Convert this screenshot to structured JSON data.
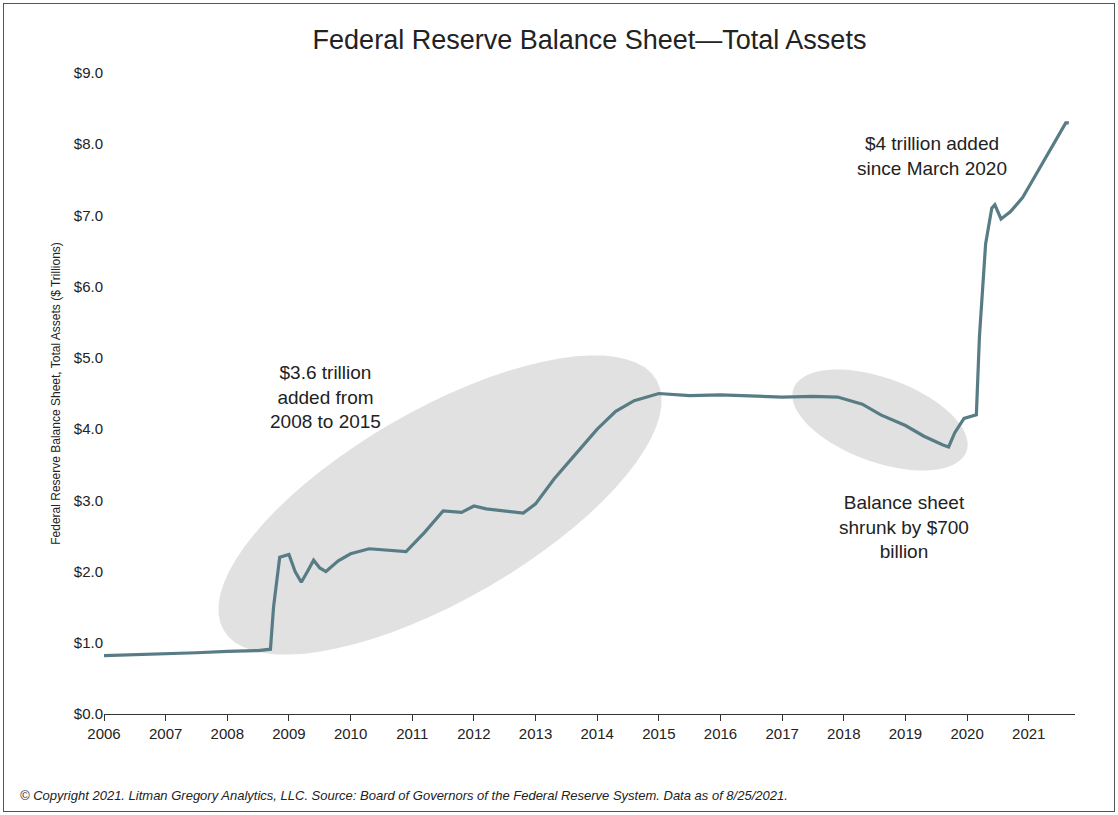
{
  "chart_data": {
    "type": "line",
    "title": "Federal Reserve Balance Sheet—Total Assets",
    "y_label": "Federal Reserve Balance Sheet, Total Assets ($ Trillions)",
    "x": [
      2006.0,
      2006.5,
      2007.0,
      2007.5,
      2008.0,
      2008.5,
      2008.7,
      2008.75,
      2008.85,
      2009.0,
      2009.1,
      2009.2,
      2009.3,
      2009.4,
      2009.5,
      2009.6,
      2009.8,
      2010.0,
      2010.3,
      2010.6,
      2010.9,
      2011.2,
      2011.5,
      2011.8,
      2012.0,
      2012.2,
      2012.5,
      2012.8,
      2013.0,
      2013.3,
      2013.6,
      2014.0,
      2014.3,
      2014.6,
      2015.0,
      2015.5,
      2016.0,
      2016.5,
      2017.0,
      2017.5,
      2017.9,
      2018.3,
      2018.6,
      2019.0,
      2019.3,
      2019.6,
      2019.7,
      2019.8,
      2019.95,
      2020.15,
      2020.2,
      2020.3,
      2020.4,
      2020.45,
      2020.55,
      2020.7,
      2020.9,
      2021.0,
      2021.2,
      2021.4,
      2021.6,
      2021.65
    ],
    "values": [
      0.82,
      0.83,
      0.85,
      0.86,
      0.88,
      0.89,
      0.91,
      1.5,
      2.2,
      2.24,
      2.0,
      1.85,
      2.0,
      2.16,
      2.05,
      2.0,
      2.15,
      2.25,
      2.32,
      2.3,
      2.28,
      2.55,
      2.85,
      2.83,
      2.92,
      2.88,
      2.85,
      2.82,
      2.95,
      3.3,
      3.6,
      4.0,
      4.25,
      4.4,
      4.5,
      4.47,
      4.48,
      4.47,
      4.45,
      4.46,
      4.45,
      4.35,
      4.2,
      4.05,
      3.9,
      3.78,
      3.75,
      3.95,
      4.15,
      4.2,
      5.3,
      6.6,
      7.1,
      7.15,
      6.95,
      7.05,
      7.25,
      7.4,
      7.7,
      8.0,
      8.3,
      8.3
    ],
    "color": "#587c86",
    "xlim": [
      2006,
      2021.75
    ],
    "xticks": [
      2006,
      2007,
      2008,
      2009,
      2010,
      2011,
      2012,
      2013,
      2014,
      2015,
      2016,
      2017,
      2018,
      2019,
      2020,
      2021
    ],
    "ylim": [
      0,
      9
    ],
    "yticks": [
      {
        "value": 0,
        "label": "$0.0"
      },
      {
        "value": 1,
        "label": "$1.0"
      },
      {
        "value": 2,
        "label": "$2.0"
      },
      {
        "value": 3,
        "label": "$3.0"
      },
      {
        "value": 4,
        "label": "$4.0"
      },
      {
        "value": 5,
        "label": "$5.0"
      },
      {
        "value": 6,
        "label": "$6.0"
      },
      {
        "value": 7,
        "label": "$7.0"
      },
      {
        "value": 8,
        "label": "$8.0"
      },
      {
        "value": 9,
        "label": "$9.0"
      }
    ],
    "grid": false,
    "annotations": [
      {
        "text": "$3.6 trillion\nadded from\n2008 to 2015"
      },
      {
        "text": "Balance sheet\nshrunk by $700\nbillion"
      },
      {
        "text": "$4 trillion added\nsince March 2020"
      }
    ],
    "note": "© Copyright 2021. Litman Gregory Analytics, LLC. Source: Board of Governors of the Federal Reserve System. Data as of 8/25/2021."
  }
}
